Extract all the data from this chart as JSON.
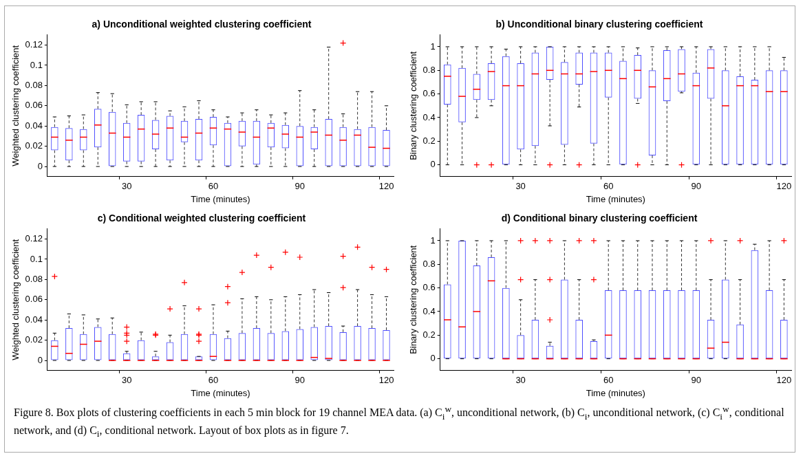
{
  "chart_data": [
    {
      "type": "box",
      "title": "a) Unconditional weighted clustering coefficient",
      "xlabel": "Time (minutes)",
      "ylabel": "Weighted clustering coefficient",
      "categories": [
        null,
        null,
        null,
        null,
        null,
        "30",
        null,
        null,
        null,
        null,
        null,
        "60",
        null,
        null,
        null,
        null,
        null,
        "90",
        null,
        null,
        null,
        null,
        null,
        "120"
      ],
      "ylim": [
        -0.01,
        0.13
      ],
      "yticks": [
        0,
        0.02,
        0.04,
        0.06,
        0.08,
        0.1,
        0.12
      ],
      "annotations": [
        "Figure 8. Box plots of clustering coefficients in each 5 min block for 19 channel MEA data. (a) C$_{i}$$^{w}$, unconditional network, (b) C$_{i}$, unconditional network, (c) C$_{i}$$^{w}$, conditional network, and (d) C$_{i}$, conditional network. Layout of box plots as in figure 7."
      ],
      "series": [
        {
          "color": "#4d4dff",
          "boxes": [
            {
              "low": 0,
              "q1": 0.016,
              "median": 0.029,
              "q3": 0.039,
              "high": 0.049
            },
            {
              "low": 0,
              "q1": 0.006,
              "median": 0.026,
              "q3": 0.038,
              "high": 0.05
            },
            {
              "low": 0,
              "q1": 0.016,
              "median": 0.029,
              "q3": 0.037,
              "high": 0.051
            },
            {
              "low": 0,
              "q1": 0.019,
              "median": 0.041,
              "q3": 0.057,
              "high": 0.073
            },
            {
              "low": 0,
              "q1": 0,
              "median": 0.033,
              "q3": 0.054,
              "high": 0.072
            },
            {
              "low": 0,
              "q1": 0.005,
              "median": 0.029,
              "q3": 0.043,
              "high": 0.061
            },
            {
              "low": 0,
              "q1": 0.005,
              "median": 0.037,
              "q3": 0.051,
              "high": 0.064
            },
            {
              "low": 0,
              "q1": 0.017,
              "median": 0.032,
              "q3": 0.046,
              "high": 0.064
            },
            {
              "low": 0,
              "q1": 0.006,
              "median": 0.038,
              "q3": 0.05,
              "high": 0.055
            },
            {
              "low": 0,
              "q1": 0.024,
              "median": 0.029,
              "q3": 0.045,
              "high": 0.059
            },
            {
              "low": 0,
              "q1": 0.006,
              "median": 0.033,
              "q3": 0.047,
              "high": 0.065
            },
            {
              "low": 0,
              "q1": 0.021,
              "median": 0.038,
              "q3": 0.049,
              "high": 0.056
            },
            {
              "low": 0,
              "q1": 0,
              "median": 0.037,
              "q3": 0.043,
              "high": 0.049
            },
            {
              "low": 0,
              "q1": 0.02,
              "median": 0.034,
              "q3": 0.045,
              "high": 0.053
            },
            {
              "low": 0,
              "q1": 0.002,
              "median": 0.029,
              "q3": 0.045,
              "high": 0.056
            },
            {
              "low": 0,
              "q1": 0.019,
              "median": 0.038,
              "q3": 0.043,
              "high": 0.051
            },
            {
              "low": 0,
              "q1": 0.018,
              "median": 0.032,
              "q3": 0.041,
              "high": 0.053
            },
            {
              "low": 0,
              "q1": 0,
              "median": 0.029,
              "q3": 0.04,
              "high": 0.075
            },
            {
              "low": 0,
              "q1": 0.017,
              "median": 0.034,
              "q3": 0.039,
              "high": 0.056
            },
            {
              "low": 0,
              "q1": 0,
              "median": 0.031,
              "q3": 0.047,
              "high": 0.118
            },
            {
              "low": 0,
              "q1": 0,
              "median": 0.026,
              "q3": 0.039,
              "high": 0.052,
              "outliers": [
                0.122
              ]
            },
            {
              "low": 0,
              "q1": 0,
              "median": 0.031,
              "q3": 0.037,
              "high": 0.074
            },
            {
              "low": 0,
              "q1": 0,
              "median": 0.019,
              "q3": 0.039,
              "high": 0.074
            },
            {
              "low": 0,
              "q1": 0,
              "median": 0.018,
              "q3": 0.036,
              "high": 0.06
            }
          ]
        }
      ]
    },
    {
      "type": "box",
      "title": "b) Unconditional binary clustering coefficient",
      "xlabel": "Time (minutes)",
      "ylabel": "Binary clustering coefficient",
      "categories": [
        null,
        null,
        null,
        null,
        null,
        "30",
        null,
        null,
        null,
        null,
        null,
        "60",
        null,
        null,
        null,
        null,
        null,
        "90",
        null,
        null,
        null,
        null,
        null,
        "120"
      ],
      "ylim": [
        -0.1,
        1.1
      ],
      "yticks": [
        0,
        0.2,
        0.4,
        0.6,
        0.8,
        1
      ],
      "series": [
        {
          "color": "#4d4dff",
          "boxes": [
            {
              "low": 0,
              "q1": 0.51,
              "median": 0.75,
              "q3": 0.85,
              "high": 1
            },
            {
              "low": 0,
              "q1": 0.36,
              "median": 0.58,
              "q3": 0.82,
              "high": 1
            },
            {
              "low": 0.4,
              "q1": 0.55,
              "median": 0.64,
              "q3": 0.77,
              "high": 1,
              "outliers": [
                0
              ]
            },
            {
              "low": 0.5,
              "q1": 0.55,
              "median": 0.79,
              "q3": 0.86,
              "high": 1,
              "outliers": [
                0
              ]
            },
            {
              "low": 0,
              "q1": 0,
              "median": 0.67,
              "q3": 0.92,
              "high": 0.98
            },
            {
              "low": 0,
              "q1": 0.13,
              "median": 0.67,
              "q3": 0.86,
              "high": 1
            },
            {
              "low": 0,
              "q1": 0.16,
              "median": 0.77,
              "q3": 0.95,
              "high": 1
            },
            {
              "low": 0.33,
              "q1": 0.72,
              "median": 0.8,
              "q3": 1,
              "high": 1,
              "outliers": [
                0
              ]
            },
            {
              "low": 0,
              "q1": 0.17,
              "median": 0.77,
              "q3": 0.87,
              "high": 1
            },
            {
              "low": 0.49,
              "q1": 0.68,
              "median": 0.77,
              "q3": 0.95,
              "high": 1,
              "outliers": [
                0
              ]
            },
            {
              "low": 0,
              "q1": 0.18,
              "median": 0.79,
              "q3": 0.95,
              "high": 1
            },
            {
              "low": 0,
              "q1": 0.57,
              "median": 0.8,
              "q3": 0.95,
              "high": 1
            },
            {
              "low": 0,
              "q1": 0,
              "median": 0.73,
              "q3": 0.88,
              "high": 1
            },
            {
              "low": 0.52,
              "q1": 0.56,
              "median": 0.8,
              "q3": 0.93,
              "high": 0.99,
              "outliers": [
                0
              ]
            },
            {
              "low": 0,
              "q1": 0.08,
              "median": 0.66,
              "q3": 0.8,
              "high": 1
            },
            {
              "low": 0,
              "q1": 0.54,
              "median": 0.73,
              "q3": 0.97,
              "high": 1
            },
            {
              "low": 0.61,
              "q1": 0.62,
              "median": 0.77,
              "q3": 0.98,
              "high": 1,
              "outliers": [
                0
              ]
            },
            {
              "low": 0,
              "q1": 0,
              "median": 0.67,
              "q3": 0.78,
              "high": 1
            },
            {
              "low": 0,
              "q1": 0.56,
              "median": 0.82,
              "q3": 0.98,
              "high": 1
            },
            {
              "low": 0,
              "q1": 0,
              "median": 0.5,
              "q3": 0.8,
              "high": 1
            },
            {
              "low": 0,
              "q1": 0,
              "median": 0.67,
              "q3": 0.75,
              "high": 1
            },
            {
              "low": 0,
              "q1": 0,
              "median": 0.67,
              "q3": 0.72,
              "high": 1
            },
            {
              "low": 0,
              "q1": 0,
              "median": 0.62,
              "q3": 0.8,
              "high": 1
            },
            {
              "low": 0,
              "q1": 0,
              "median": 0.62,
              "q3": 0.8,
              "high": 0.91
            }
          ]
        }
      ]
    },
    {
      "type": "box",
      "title": "c) Conditional weighted clustering coefficient",
      "xlabel": "Time (minutes)",
      "ylabel": "Weighted clustering coefficient",
      "categories": [
        null,
        null,
        null,
        null,
        null,
        "30",
        null,
        null,
        null,
        null,
        null,
        "60",
        null,
        null,
        null,
        null,
        null,
        "90",
        null,
        null,
        null,
        null,
        null,
        "120"
      ],
      "ylim": [
        -0.01,
        0.13
      ],
      "yticks": [
        0,
        0.02,
        0.04,
        0.06,
        0.08,
        0.1,
        0.12
      ],
      "series": [
        {
          "color": "#4d4dff",
          "boxes": [
            {
              "low": 0,
              "q1": 0,
              "median": 0.014,
              "q3": 0.02,
              "high": 0.027,
              "outliers": [
                0.083
              ]
            },
            {
              "low": 0,
              "q1": 0,
              "median": 0.007,
              "q3": 0.032,
              "high": 0.046
            },
            {
              "low": 0,
              "q1": 0,
              "median": 0.016,
              "q3": 0.026,
              "high": 0.045
            },
            {
              "low": 0,
              "q1": 0,
              "median": 0.019,
              "q3": 0.033,
              "high": 0.041
            },
            {
              "low": 0,
              "q1": 0,
              "median": 0,
              "q3": 0.026,
              "high": 0.042
            },
            {
              "low": 0,
              "q1": 0,
              "median": 0,
              "q3": 0.007,
              "high": 0.009,
              "outliers": [
                0.033,
                0.027,
                0.025,
                0.019
              ]
            },
            {
              "low": 0,
              "q1": 0,
              "median": 0,
              "q3": 0.02,
              "high": 0.028
            },
            {
              "low": 0,
              "q1": 0,
              "median": 0,
              "q3": 0.004,
              "high": 0.009,
              "outliers": [
                0.026,
                0.025
              ]
            },
            {
              "low": 0,
              "q1": 0,
              "median": 0,
              "q3": 0.018,
              "high": 0.025,
              "outliers": [
                0.051
              ]
            },
            {
              "low": 0,
              "q1": 0,
              "median": 0,
              "q3": 0.026,
              "high": 0.054,
              "outliers": [
                0.077
              ]
            },
            {
              "low": 0,
              "q1": 0,
              "median": 0,
              "q3": 0.004,
              "high": 0.004,
              "outliers": [
                0.051,
                0.026,
                0.025,
                0.019
              ]
            },
            {
              "low": 0,
              "q1": 0,
              "median": 0.004,
              "q3": 0.026,
              "high": 0.055
            },
            {
              "low": 0,
              "q1": 0,
              "median": 0,
              "q3": 0.022,
              "high": 0.029,
              "outliers": [
                0.073,
                0.057
              ]
            },
            {
              "low": 0,
              "q1": 0,
              "median": 0,
              "q3": 0.027,
              "high": 0.061,
              "outliers": [
                0.087
              ]
            },
            {
              "low": 0,
              "q1": 0,
              "median": 0,
              "q3": 0.032,
              "high": 0.063,
              "outliers": [
                0.104
              ]
            },
            {
              "low": 0,
              "q1": 0,
              "median": 0,
              "q3": 0.027,
              "high": 0.06,
              "outliers": [
                0.092
              ]
            },
            {
              "low": 0,
              "q1": 0,
              "median": 0,
              "q3": 0.029,
              "high": 0.063,
              "outliers": [
                0.107
              ]
            },
            {
              "low": 0,
              "q1": 0,
              "median": 0,
              "q3": 0.031,
              "high": 0.065,
              "outliers": [
                0.102
              ]
            },
            {
              "low": 0,
              "q1": 0,
              "median": 0.003,
              "q3": 0.033,
              "high": 0.07
            },
            {
              "low": 0,
              "q1": 0,
              "median": 0.002,
              "q3": 0.034,
              "high": 0.067
            },
            {
              "low": 0,
              "q1": 0,
              "median": 0,
              "q3": 0.028,
              "high": 0.034,
              "outliers": [
                0.103,
                0.072
              ]
            },
            {
              "low": 0,
              "q1": 0,
              "median": 0,
              "q3": 0.034,
              "high": 0.07,
              "outliers": [
                0.112
              ]
            },
            {
              "low": 0,
              "q1": 0,
              "median": 0,
              "q3": 0.032,
              "high": 0.065,
              "outliers": [
                0.092
              ]
            },
            {
              "low": 0,
              "q1": 0,
              "median": 0,
              "q3": 0.03,
              "high": 0.063,
              "outliers": [
                0.09
              ]
            }
          ]
        }
      ]
    },
    {
      "type": "box",
      "title": "d) Conditional binary clustering coefficient",
      "xlabel": "Time (minutes)",
      "ylabel": "Binary clustering coefficient",
      "categories": [
        null,
        null,
        null,
        null,
        null,
        "30",
        null,
        null,
        null,
        null,
        null,
        "60",
        null,
        null,
        null,
        null,
        null,
        "90",
        null,
        null,
        null,
        null,
        null,
        "120"
      ],
      "ylim": [
        -0.1,
        1.1
      ],
      "yticks": [
        0,
        0.2,
        0.4,
        0.6,
        0.8,
        1
      ],
      "series": [
        {
          "color": "#4d4dff",
          "boxes": [
            {
              "low": 0,
              "q1": 0,
              "median": 0.33,
              "q3": 0.63,
              "high": 1
            },
            {
              "low": 0,
              "q1": 0,
              "median": 0.27,
              "q3": 1,
              "high": 1
            },
            {
              "low": 0,
              "q1": 0,
              "median": 0.4,
              "q3": 0.79,
              "high": 1
            },
            {
              "low": 0,
              "q1": 0,
              "median": 0.66,
              "q3": 0.86,
              "high": 1
            },
            {
              "low": 0,
              "q1": 0,
              "median": 0,
              "q3": 0.6,
              "high": 1
            },
            {
              "low": 0,
              "q1": 0,
              "median": 0,
              "q3": 0.2,
              "high": 0.5,
              "outliers": [
                1,
                0.67
              ]
            },
            {
              "low": 0,
              "q1": 0,
              "median": 0,
              "q3": 0.33,
              "high": 0.67,
              "outliers": [
                1
              ]
            },
            {
              "low": 0,
              "q1": 0,
              "median": 0,
              "q3": 0.11,
              "high": 0.14,
              "outliers": [
                1,
                0.67,
                0.33
              ]
            },
            {
              "low": 0,
              "q1": 0,
              "median": 0,
              "q3": 0.67,
              "high": 1
            },
            {
              "low": 0,
              "q1": 0,
              "median": 0,
              "q3": 0.33,
              "high": 0.67,
              "outliers": [
                1
              ]
            },
            {
              "low": 0,
              "q1": 0,
              "median": 0,
              "q3": 0.15,
              "high": 0.16,
              "outliers": [
                1,
                0.67
              ]
            },
            {
              "low": 0,
              "q1": 0,
              "median": 0.2,
              "q3": 0.58,
              "high": 1
            },
            {
              "low": 0,
              "q1": 0,
              "median": 0,
              "q3": 0.58,
              "high": 1
            },
            {
              "low": 0,
              "q1": 0,
              "median": 0,
              "q3": 0.58,
              "high": 1
            },
            {
              "low": 0,
              "q1": 0,
              "median": 0,
              "q3": 0.58,
              "high": 1
            },
            {
              "low": 0,
              "q1": 0,
              "median": 0,
              "q3": 0.58,
              "high": 1
            },
            {
              "low": 0,
              "q1": 0,
              "median": 0,
              "q3": 0.58,
              "high": 1
            },
            {
              "low": 0,
              "q1": 0,
              "median": 0,
              "q3": 0.58,
              "high": 1
            },
            {
              "low": 0,
              "q1": 0,
              "median": 0.09,
              "q3": 0.33,
              "high": 0.67,
              "outliers": [
                1
              ]
            },
            {
              "low": 0,
              "q1": 0,
              "median": 0.14,
              "q3": 0.67,
              "high": 1
            },
            {
              "low": 0,
              "q1": 0,
              "median": 0,
              "q3": 0.29,
              "high": 0.67,
              "outliers": [
                1
              ]
            },
            {
              "low": 0,
              "q1": 0,
              "median": 0,
              "q3": 0.92,
              "high": 0.97
            },
            {
              "low": 0,
              "q1": 0,
              "median": 0,
              "q3": 0.58,
              "high": 1
            },
            {
              "low": 0,
              "q1": 0,
              "median": 0,
              "q3": 0.33,
              "high": 0.67,
              "outliers": [
                1
              ]
            }
          ]
        }
      ]
    }
  ]
}
